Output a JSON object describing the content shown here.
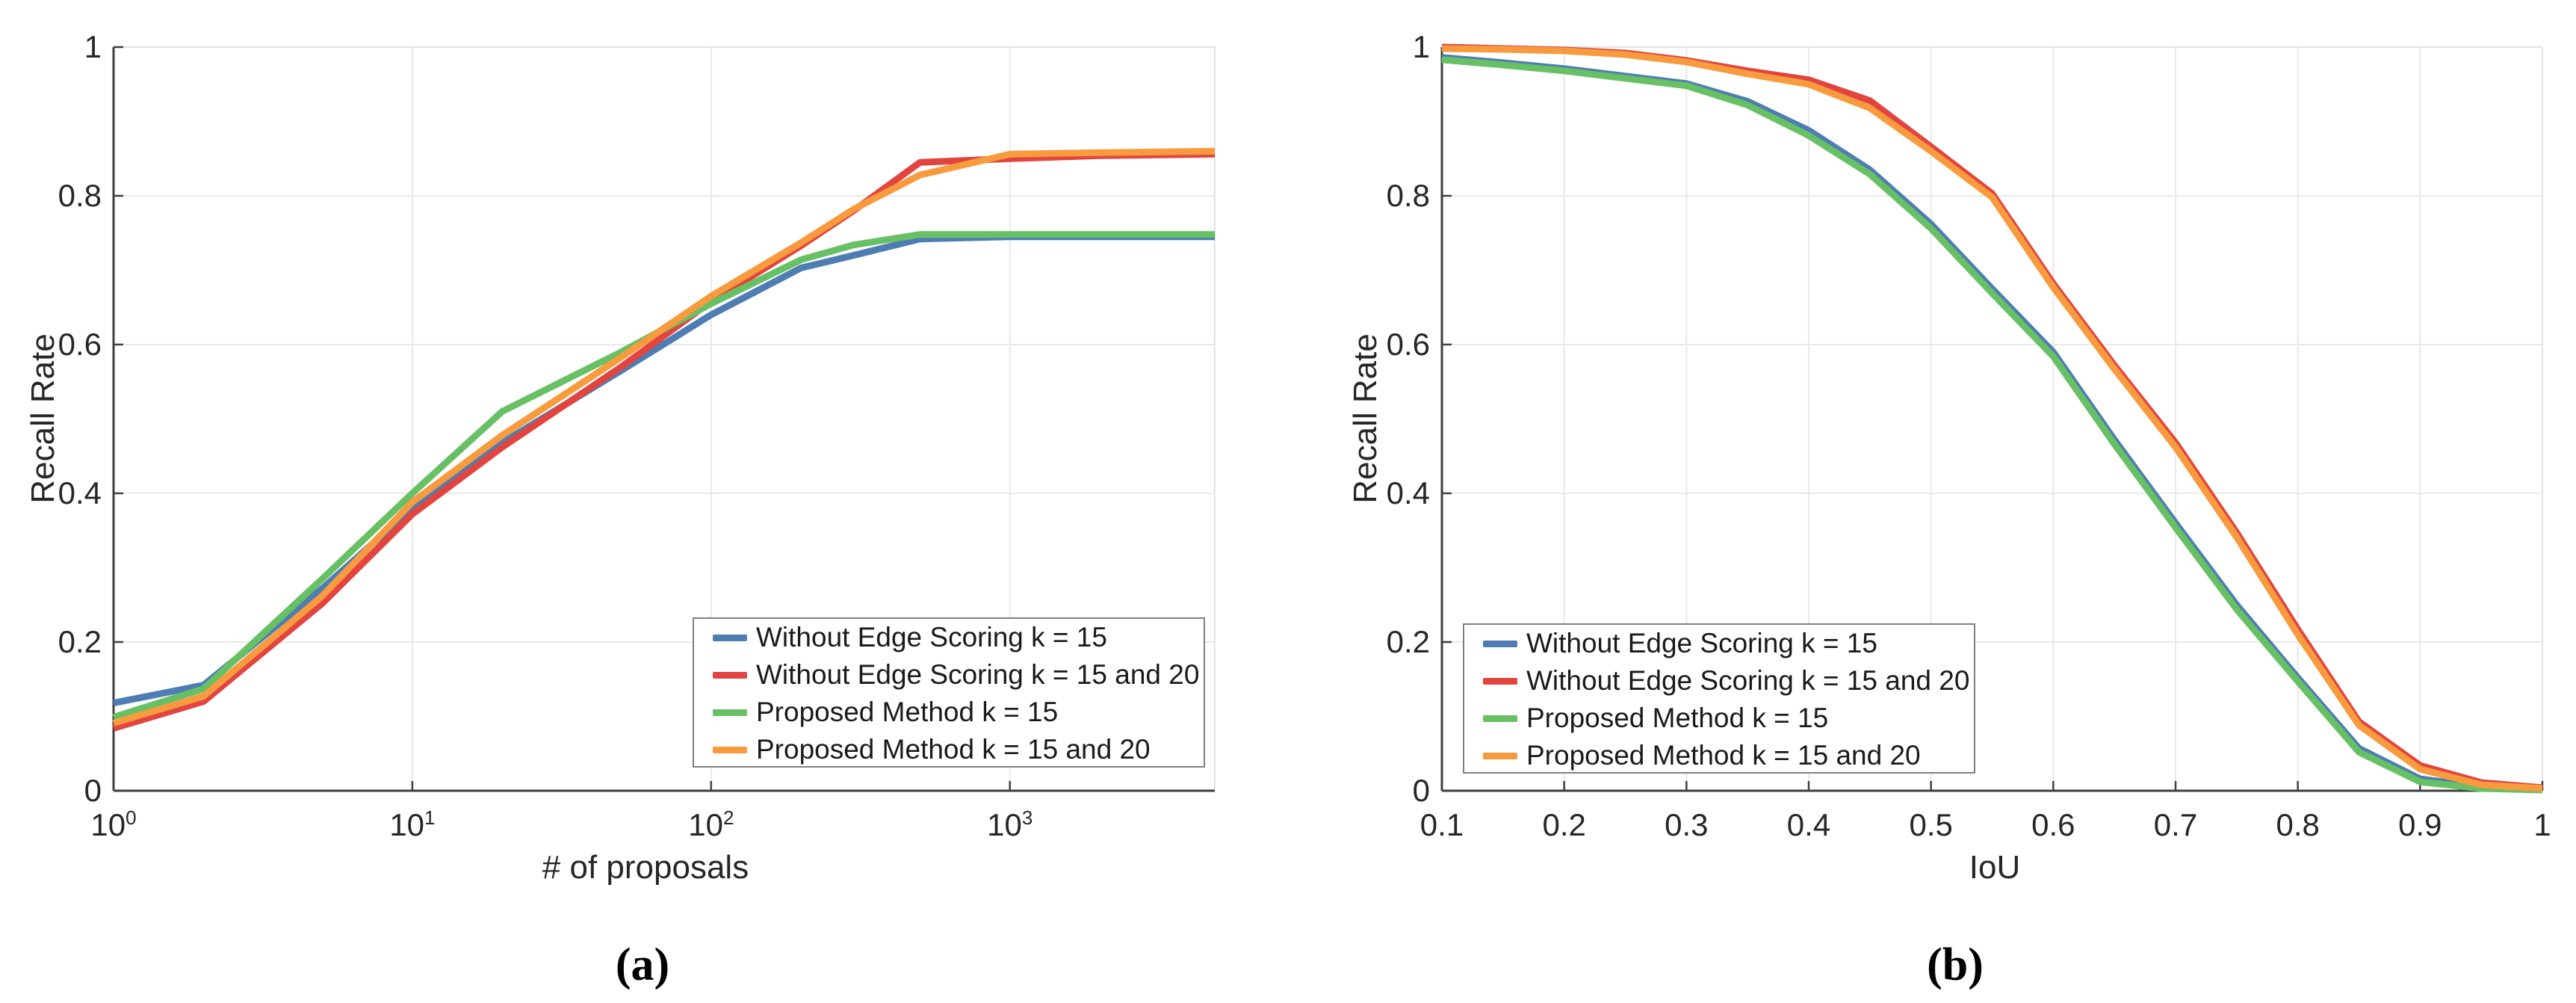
{
  "figure": {
    "background": "#ffffff"
  },
  "captions": [
    {
      "id": "a",
      "label": "(a)"
    },
    {
      "id": "b",
      "label": "(b)"
    }
  ],
  "palette": {
    "blue": "#4d7db3",
    "red": "#e2453f",
    "green": "#68c065",
    "orange": "#f89a3e",
    "axis": "#3f3f3f",
    "grid": "#e9e9e9",
    "border_light": "#e2e2e2",
    "tick_text": "#262626",
    "legend_border": "#7f7f7f"
  },
  "chart_data": [
    {
      "id": "a",
      "type": "line",
      "title": "",
      "xlabel": "# of proposals",
      "ylabel": "Recall Rate",
      "x_scale": "log10",
      "xlim": [
        1,
        4850
      ],
      "ylim": [
        0,
        1
      ],
      "grid": true,
      "legend_location": "lower right inside",
      "x_ticks": [
        {
          "value": 1,
          "base": "10",
          "sup": "0"
        },
        {
          "value": 10,
          "base": "10",
          "sup": "1"
        },
        {
          "value": 100,
          "base": "10",
          "sup": "2"
        },
        {
          "value": 1000,
          "base": "10",
          "sup": "3"
        }
      ],
      "x_gridlines": [
        10,
        100,
        1000
      ],
      "y_ticks": [
        {
          "value": 0,
          "label": "0"
        },
        {
          "value": 0.2,
          "label": "0.2"
        },
        {
          "value": 0.4,
          "label": "0.4"
        },
        {
          "value": 0.6,
          "label": "0.6"
        },
        {
          "value": 0.8,
          "label": "0.8"
        },
        {
          "value": 1,
          "label": "1"
        }
      ],
      "y_gridlines": [
        0.2,
        0.4,
        0.6,
        0.8
      ],
      "x": [
        1,
        2,
        5,
        10,
        20,
        50,
        100,
        200,
        300,
        500,
        1000,
        2000,
        5000
      ],
      "series": [
        {
          "name": "Without Edge Scoring k = 15",
          "color_key": "blue",
          "values": [
            0.118,
            0.142,
            0.272,
            0.38,
            0.468,
            0.565,
            0.64,
            0.703,
            0.72,
            0.742,
            0.745,
            0.745,
            0.745
          ]
        },
        {
          "name": "Without Edge Scoring k = 15 and 20",
          "color_key": "red",
          "values": [
            0.084,
            0.12,
            0.252,
            0.372,
            0.462,
            0.57,
            0.658,
            0.733,
            0.78,
            0.845,
            0.85,
            0.854,
            0.856
          ]
        },
        {
          "name": "Proposed Method k = 15",
          "color_key": "green",
          "values": [
            0.099,
            0.137,
            0.285,
            0.4,
            0.51,
            0.59,
            0.655,
            0.714,
            0.734,
            0.748,
            0.748,
            0.748,
            0.748
          ]
        },
        {
          "name": "Proposed Method k = 15 and 20",
          "color_key": "orange",
          "values": [
            0.091,
            0.127,
            0.262,
            0.388,
            0.478,
            0.583,
            0.665,
            0.737,
            0.782,
            0.828,
            0.856,
            0.858,
            0.86
          ]
        }
      ]
    },
    {
      "id": "b",
      "type": "line",
      "title": "",
      "xlabel": "IoU",
      "ylabel": "Recall Rate",
      "x_scale": "linear",
      "xlim": [
        0.1,
        1.0
      ],
      "ylim": [
        0,
        1
      ],
      "grid": true,
      "legend_location": "lower left inside",
      "x_ticks": [
        {
          "value": 0.1,
          "label": "0.1"
        },
        {
          "value": 0.2,
          "label": "0.2"
        },
        {
          "value": 0.3,
          "label": "0.3"
        },
        {
          "value": 0.4,
          "label": "0.4"
        },
        {
          "value": 0.5,
          "label": "0.5"
        },
        {
          "value": 0.6,
          "label": "0.6"
        },
        {
          "value": 0.7,
          "label": "0.7"
        },
        {
          "value": 0.8,
          "label": "0.8"
        },
        {
          "value": 0.9,
          "label": "0.9"
        },
        {
          "value": 1,
          "label": "1"
        }
      ],
      "x_gridlines": [
        0.2,
        0.3,
        0.4,
        0.5,
        0.6,
        0.7,
        0.8,
        0.9
      ],
      "y_ticks": [
        {
          "value": 0,
          "label": "0"
        },
        {
          "value": 0.2,
          "label": "0.2"
        },
        {
          "value": 0.4,
          "label": "0.4"
        },
        {
          "value": 0.6,
          "label": "0.6"
        },
        {
          "value": 0.8,
          "label": "0.8"
        },
        {
          "value": 1,
          "label": "1"
        }
      ],
      "y_gridlines": [
        0.2,
        0.4,
        0.6,
        0.8
      ],
      "x": [
        0.1,
        0.15,
        0.2,
        0.25,
        0.3,
        0.35,
        0.4,
        0.45,
        0.5,
        0.55,
        0.6,
        0.65,
        0.7,
        0.75,
        0.8,
        0.85,
        0.9,
        0.95,
        1.0
      ],
      "series": [
        {
          "name": "Without Edge Scoring k = 15",
          "color_key": "blue",
          "values": [
            0.986,
            0.979,
            0.971,
            0.961,
            0.951,
            0.927,
            0.888,
            0.835,
            0.762,
            0.675,
            0.59,
            0.472,
            0.36,
            0.25,
            0.152,
            0.057,
            0.016,
            0.005,
            0.002
          ]
        },
        {
          "name": "Without Edge Scoring k = 15 and 20",
          "color_key": "red",
          "values": [
            1.0,
            0.998,
            0.996,
            0.992,
            0.982,
            0.968,
            0.956,
            0.928,
            0.866,
            0.803,
            0.682,
            0.572,
            0.468,
            0.347,
            0.217,
            0.093,
            0.034,
            0.011,
            0.004
          ]
        },
        {
          "name": "Proposed Method k = 15",
          "color_key": "green",
          "values": [
            0.983,
            0.976,
            0.968,
            0.958,
            0.948,
            0.922,
            0.881,
            0.829,
            0.756,
            0.669,
            0.584,
            0.466,
            0.354,
            0.244,
            0.147,
            0.052,
            0.012,
            0.003,
            0.001
          ]
        },
        {
          "name": "Proposed Method k = 15 and 20",
          "color_key": "orange",
          "values": [
            0.998,
            0.997,
            0.995,
            0.99,
            0.98,
            0.964,
            0.95,
            0.918,
            0.86,
            0.798,
            0.677,
            0.567,
            0.462,
            0.341,
            0.21,
            0.088,
            0.029,
            0.008,
            0.003
          ]
        }
      ]
    }
  ]
}
